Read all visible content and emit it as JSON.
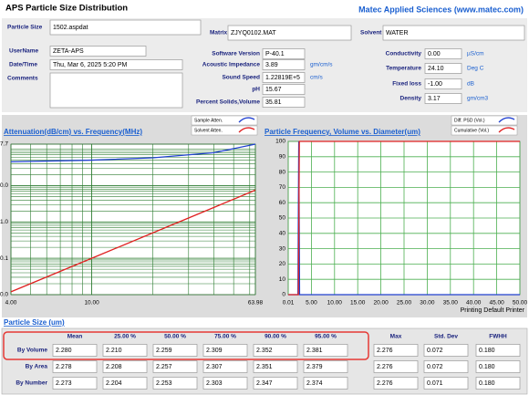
{
  "header": {
    "title": "APS Particle Size Distribution",
    "company": "Matec Applied Sciences (www.matec.com)"
  },
  "fields": {
    "particle_size": {
      "label": "Particle Size",
      "value": "1502.aspdat"
    },
    "matrix": {
      "label": "Matrix",
      "value": "ZJYQ0102.MAT"
    },
    "solvent": {
      "label": "Solvent",
      "value": "WATER"
    },
    "username": {
      "label": "UserName",
      "value": "ZETA-APS"
    },
    "datetime": {
      "label": "Date/Time",
      "value": "Thu, Mar 6, 2025 5:20 PM"
    },
    "comments": {
      "label": "Comments"
    },
    "software_version": {
      "label": "Software Version",
      "value": "P-40.1"
    },
    "acoustic_impedance": {
      "label": "Acoustic Impedance",
      "value": "3.89",
      "unit": "gm/cm/s"
    },
    "sound_speed": {
      "label": "Sound Speed",
      "value": "1.22819E+5",
      "unit": "cm/s"
    },
    "ph": {
      "label": "pH",
      "value": "15.67"
    },
    "percent_solids": {
      "label": "Percent Solids,Volume",
      "value": "35.81"
    },
    "conductivity": {
      "label": "Conductivity",
      "value": "0.00",
      "unit": "µS/cm"
    },
    "temperature": {
      "label": "Temperature",
      "value": "24.10",
      "unit": "Deg C"
    },
    "fixed_loss": {
      "label": "Fixed loss",
      "value": "-1.00",
      "unit": "dB"
    },
    "density": {
      "label": "Density",
      "value": "3.17",
      "unit": "gm/cm3"
    }
  },
  "chart_data": [
    {
      "type": "line",
      "title": "Attenuation(dB/cm) vs. Frequency(MHz)",
      "log_x": true,
      "log_y": true,
      "grid": true,
      "xlim": [
        4,
        63.98
      ],
      "xticks": [
        {
          "value": 4,
          "label": "4.00"
        },
        {
          "value": 10,
          "label": "10.00"
        },
        63.98
      ],
      "ylim": [
        0.01,
        137.7
      ],
      "yticks": [
        137.7,
        {
          "value": 10,
          "label": "10.0"
        },
        {
          "value": 1,
          "label": "1.0"
        },
        0.1,
        {
          "value": 0.01,
          "label": "0.0"
        }
      ],
      "series": [
        {
          "name": "Sample Atten.",
          "color": "#2040d0",
          "x": [
            4,
            10,
            20,
            40,
            63.98
          ],
          "values": [
            45,
            50,
            58,
            80,
            137.7
          ]
        },
        {
          "name": "Solvent Atten.",
          "color": "#e02020",
          "x": [
            4,
            10,
            20,
            40,
            63.98
          ],
          "values": [
            0.012,
            0.1,
            0.5,
            2.5,
            7.5
          ]
        }
      ]
    },
    {
      "type": "line",
      "title": "Particle Frequency, Volume vs. Diameter(um)",
      "grid": true,
      "xlim": [
        0,
        50
      ],
      "xticks": [
        0.01,
        {
          "value": 5,
          "label": "5.00"
        },
        {
          "value": 10,
          "label": "10.00"
        },
        {
          "value": 15,
          "label": "15.00"
        },
        {
          "value": 20,
          "label": "20.00"
        },
        {
          "value": 25,
          "label": "25.00"
        },
        {
          "value": 30,
          "label": "30.00"
        },
        {
          "value": 35,
          "label": "35.00"
        },
        {
          "value": 40,
          "label": "40.00"
        },
        {
          "value": 45,
          "label": "45.00"
        },
        {
          "value": 50,
          "label": "50.00"
        }
      ],
      "ylim": [
        0,
        100
      ],
      "yticks": [
        0,
        10,
        20,
        30,
        40,
        50,
        60,
        70,
        80,
        90,
        100
      ],
      "series": [
        {
          "name": "Diff. PSD (Vol.)",
          "color": "#2040d0",
          "x": [
            0.01,
            2.1,
            2.28,
            2.45,
            50
          ],
          "values": [
            0,
            0,
            100,
            0,
            0
          ]
        },
        {
          "name": "Cumulative (Vol.)",
          "color": "#e02020",
          "x": [
            0.01,
            2.2,
            2.4,
            50
          ],
          "values": [
            0,
            0,
            100,
            100
          ]
        }
      ]
    }
  ],
  "printer": "Printing Default Printer",
  "table": {
    "title": "Particle Size (um)",
    "columns": [
      "Mean",
      "25.00 %",
      "50.00 %",
      "75.00 %",
      "90.00 %",
      "95.00 %",
      "Max",
      "Std. Dev",
      "FWHH"
    ],
    "rows": [
      {
        "label": "By Volume",
        "cells": [
          "2.280",
          "2.210",
          "2.259",
          "2.309",
          "2.352",
          "2.381",
          "2.276",
          "0.072",
          "0.180"
        ]
      },
      {
        "label": "By Area",
        "cells": [
          "2.278",
          "2.208",
          "2.257",
          "2.307",
          "2.351",
          "2.379",
          "2.276",
          "0.072",
          "0.180"
        ]
      },
      {
        "label": "By Number",
        "cells": [
          "2.273",
          "2.204",
          "2.253",
          "2.303",
          "2.347",
          "2.374",
          "2.276",
          "0.071",
          "0.180"
        ]
      }
    ]
  }
}
